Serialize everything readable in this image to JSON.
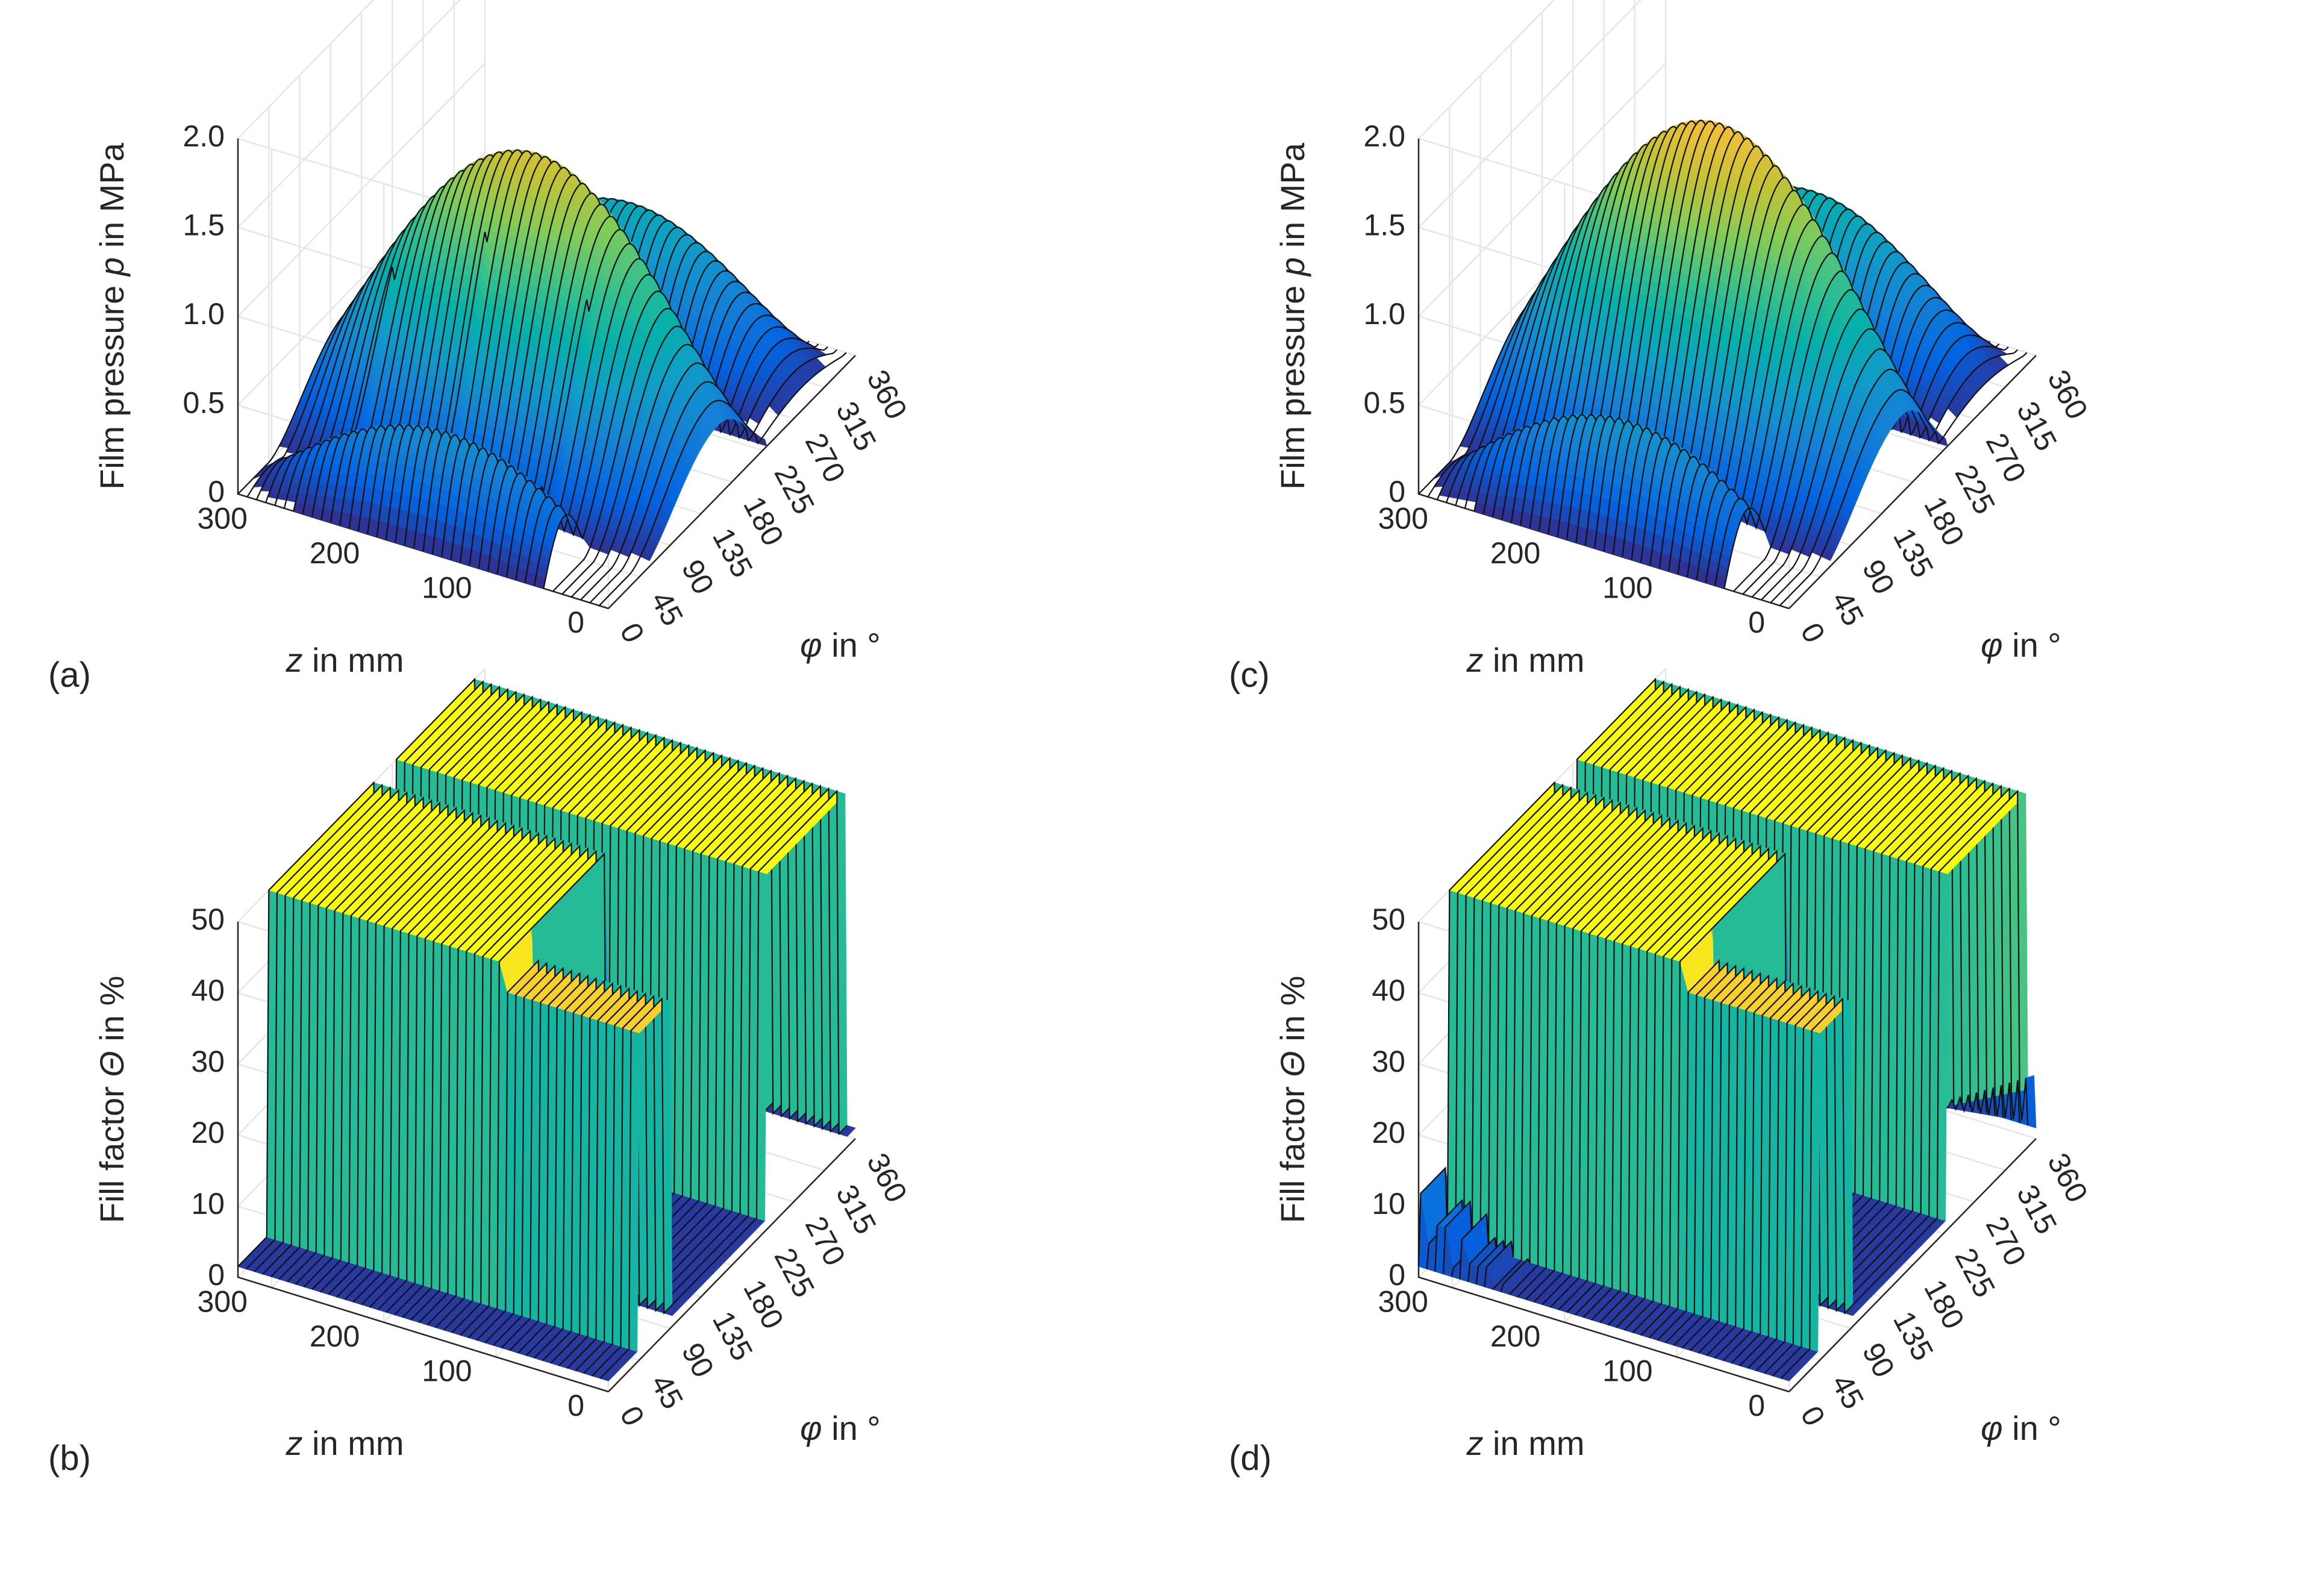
{
  "chart_data": [
    {
      "type": "surface",
      "panel_label": "(a)",
      "zlabel_parts": [
        "Film pressure ",
        "p",
        " in MPa"
      ],
      "xlabel_parts": [
        "φ",
        " in °"
      ],
      "ylabel_parts": [
        "z",
        " in mm"
      ],
      "x_ticks": [
        "0",
        "45",
        "90",
        "135",
        "180",
        "225",
        "270",
        "315",
        "360"
      ],
      "y_ticks": [
        "0",
        "100",
        "200",
        "300"
      ],
      "z_ticks": [
        "0",
        "0.5",
        "1.0",
        "1.5",
        "2.0"
      ],
      "xlim": [
        0,
        360
      ],
      "ylim": [
        0,
        330
      ],
      "zlim": [
        0,
        2.0
      ],
      "surface": {
        "kind": "pressure",
        "main_lobe": {
          "phi_start": 45,
          "phi_end": 230,
          "phi_peak": 160,
          "peak": 1.6
        },
        "back_lobe": {
          "phi_start": 235,
          "phi_end": 355,
          "peak": 0.78
        },
        "front_lobe": {
          "phi_start": 0,
          "phi_end": 60,
          "peak": 0.55
        },
        "groove_spikes": true
      }
    },
    {
      "type": "surface",
      "panel_label": "(b)",
      "zlabel_parts": [
        "Fill factor ",
        "Θ",
        " in %"
      ],
      "xlabel_parts": [
        "φ",
        " in °"
      ],
      "ylabel_parts": [
        "z",
        " in mm"
      ],
      "x_ticks": [
        "0",
        "45",
        "90",
        "135",
        "180",
        "225",
        "270",
        "315",
        "360"
      ],
      "y_ticks": [
        "0",
        "100",
        "200",
        "300"
      ],
      "z_ticks": [
        "0",
        "10",
        "20",
        "30",
        "40",
        "50"
      ],
      "xlim": [
        0,
        360
      ],
      "ylim": [
        0,
        330
      ],
      "zlim": [
        0,
        50
      ],
      "surface": {
        "kind": "fill",
        "walls": [
          {
            "phi_start": 45,
            "phi_end": 200,
            "z_from": 120,
            "z_to": 330,
            "height": 50
          },
          {
            "phi_start": 230,
            "phi_end": 345,
            "z_from": 0,
            "z_to": 330,
            "height": 50
          },
          {
            "phi_start": 45,
            "phi_end": 90,
            "z_from": 0,
            "z_to": 120,
            "height": 46
          }
        ]
      }
    },
    {
      "type": "surface",
      "panel_label": "(c)",
      "zlabel_parts": [
        "Film pressure ",
        "p",
        " in MPa"
      ],
      "xlabel_parts": [
        "φ",
        " in °"
      ],
      "ylabel_parts": [
        "z",
        " in mm"
      ],
      "x_ticks": [
        "0",
        "45",
        "90",
        "135",
        "180",
        "225",
        "270",
        "315",
        "360"
      ],
      "y_ticks": [
        "0",
        "100",
        "200",
        "300"
      ],
      "z_ticks": [
        "0",
        "0.5",
        "1.0",
        "1.5",
        "2.0"
      ],
      "xlim": [
        0,
        360
      ],
      "ylim": [
        0,
        330
      ],
      "zlim": [
        0,
        2.0
      ],
      "surface": {
        "kind": "pressure",
        "main_lobe": {
          "phi_start": 45,
          "phi_end": 230,
          "phi_peak": 165,
          "peak": 1.75
        },
        "back_lobe": {
          "phi_start": 235,
          "phi_end": 355,
          "peak": 0.85
        },
        "front_lobe": {
          "phi_start": 0,
          "phi_end": 65,
          "peak": 0.6
        },
        "groove_spikes": false
      }
    },
    {
      "type": "surface",
      "panel_label": "(d)",
      "zlabel_parts": [
        "Fill factor ",
        "Θ",
        " in %"
      ],
      "xlabel_parts": [
        "φ",
        " in °"
      ],
      "ylabel_parts": [
        "z",
        " in mm"
      ],
      "x_ticks": [
        "0",
        "45",
        "90",
        "135",
        "180",
        "225",
        "270",
        "315",
        "360"
      ],
      "y_ticks": [
        "0",
        "100",
        "200",
        "300"
      ],
      "z_ticks": [
        "0",
        "10",
        "20",
        "30",
        "40",
        "50"
      ],
      "xlim": [
        0,
        360
      ],
      "ylim": [
        0,
        330
      ],
      "zlim": [
        0,
        50
      ],
      "surface": {
        "kind": "fill",
        "walls": [
          {
            "phi_start": 45,
            "phi_end": 200,
            "z_from": 120,
            "z_to": 330,
            "height": 50
          },
          {
            "phi_start": 230,
            "phi_end": 345,
            "z_from": 0,
            "z_to": 330,
            "height": 50
          },
          {
            "phi_start": 45,
            "phi_end": 90,
            "z_from": 0,
            "z_to": 120,
            "height": 46
          }
        ],
        "bumps": true
      }
    }
  ]
}
